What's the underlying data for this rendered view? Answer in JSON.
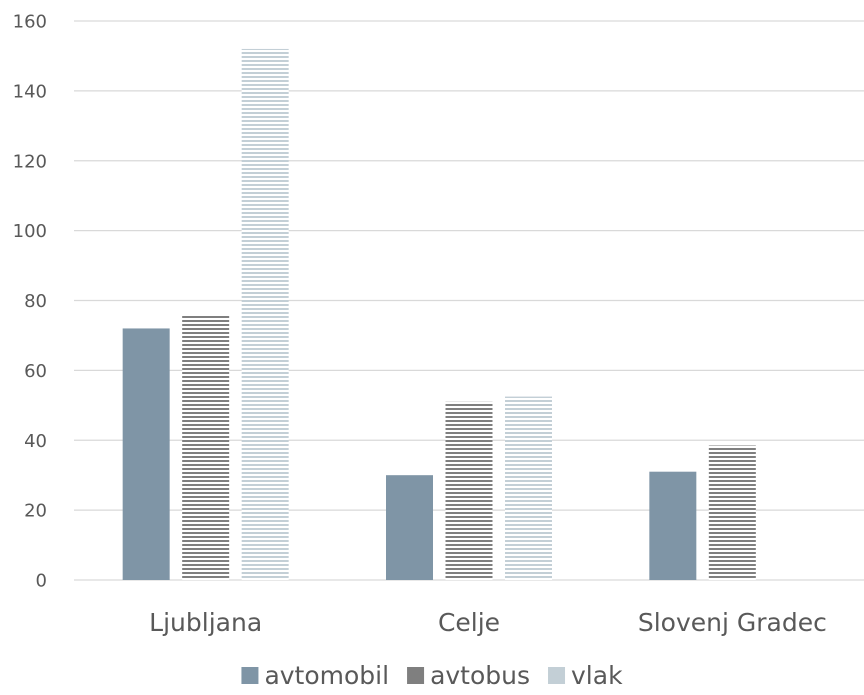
{
  "chart_data": {
    "type": "bar",
    "title": "",
    "xlabel": "",
    "ylabel": "",
    "categories": [
      "Ljubljana",
      "Celje",
      "Slovenj Gradec"
    ],
    "series": [
      {
        "name": "avtomobil",
        "values": [
          72,
          30,
          31
        ],
        "color": "#7f95a6",
        "pattern": "solid"
      },
      {
        "name": "avtobus",
        "values": [
          76,
          51,
          38.5
        ],
        "color": "#7f7f7f",
        "pattern": "horizontal-lines"
      },
      {
        "name": "vlak",
        "values": [
          152,
          52.5,
          null
        ],
        "color": "#c3cfd6",
        "pattern": "horizontal-lines"
      }
    ],
    "ylim": [
      0,
      160
    ],
    "yticks": [
      0,
      20,
      40,
      60,
      80,
      100,
      120,
      140,
      160
    ],
    "grid": true,
    "legend_position": "bottom"
  }
}
